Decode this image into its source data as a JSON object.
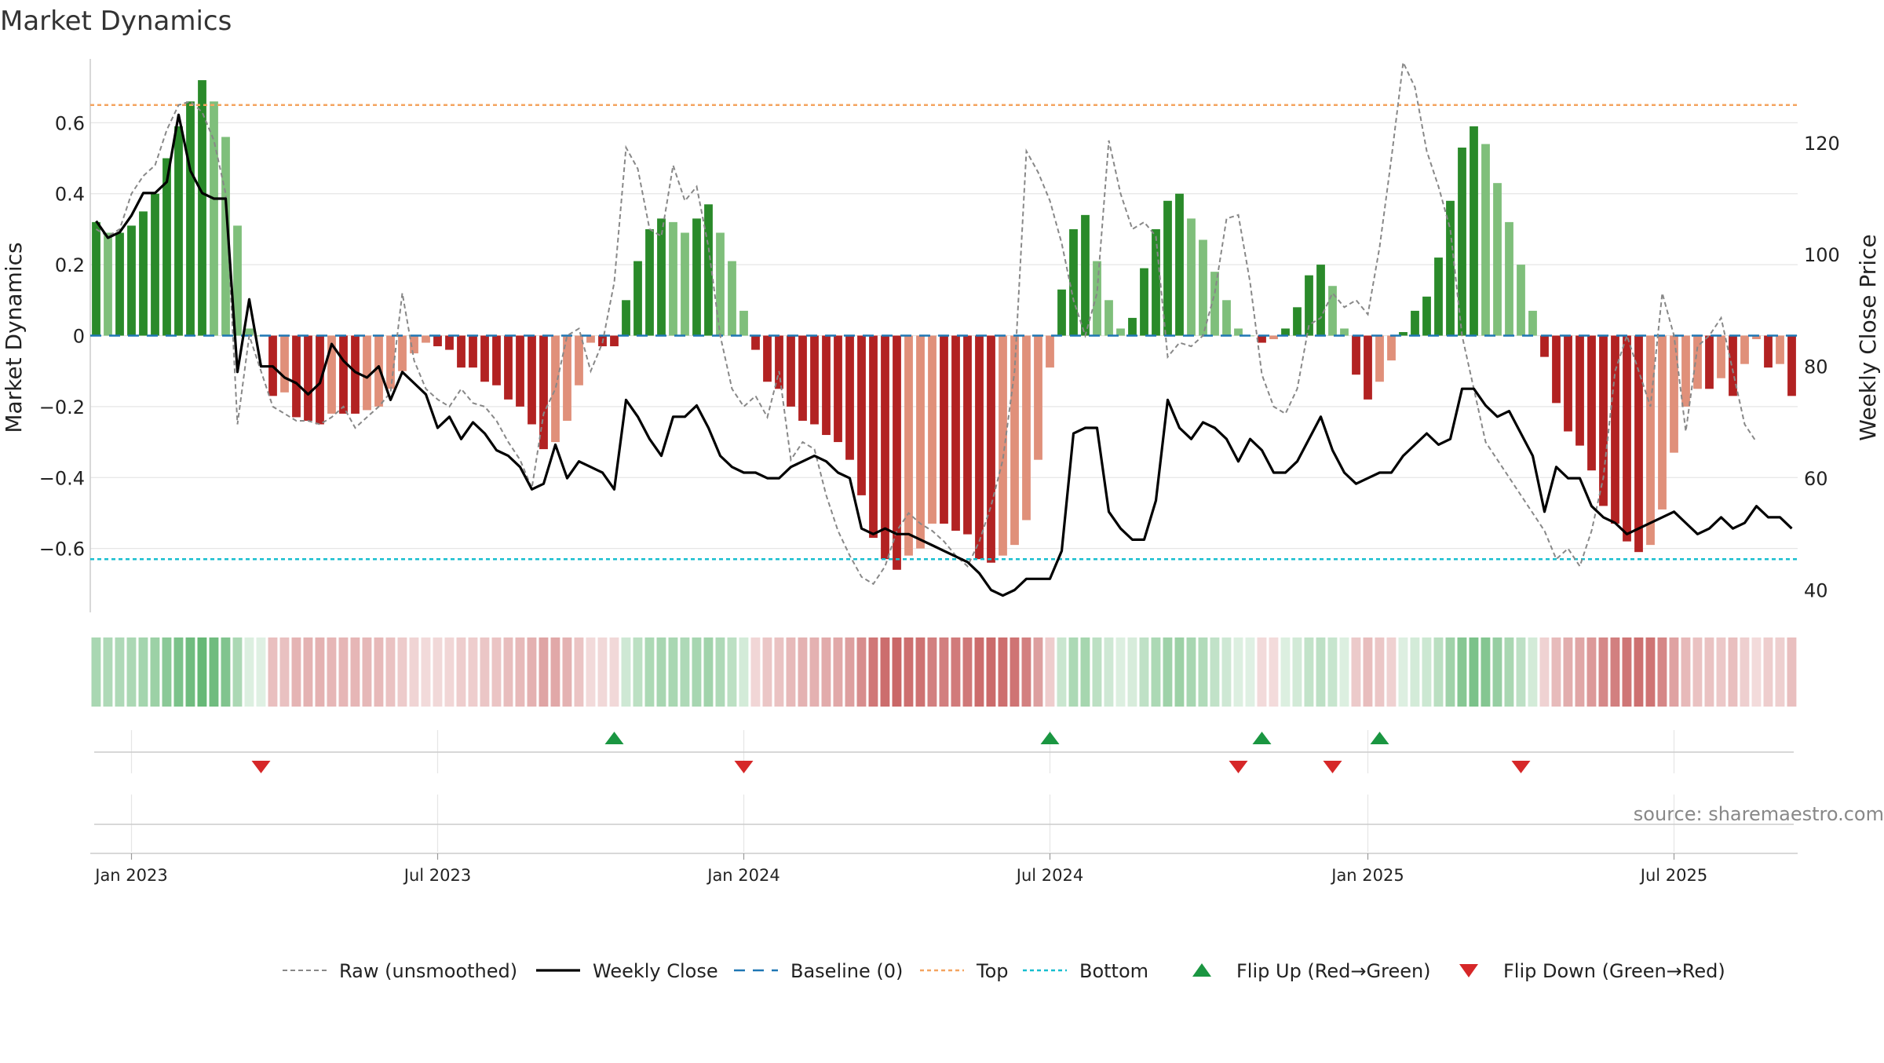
{
  "chart_data": {
    "type": "bar",
    "title": "Market Dynamics",
    "ylabel": "Market Dynamics",
    "y2label": "Weekly Close Price",
    "source": "source: sharemaestro.com",
    "ylim": [
      -0.78,
      0.78
    ],
    "y2lim": [
      36,
      135
    ],
    "yticks": [
      {
        "v": 0.6,
        "label": "0.6"
      },
      {
        "v": 0.4,
        "label": "0.4"
      },
      {
        "v": 0.2,
        "label": "0.2"
      },
      {
        "v": 0,
        "label": "0"
      },
      {
        "v": -0.2,
        "label": "−0.2"
      },
      {
        "v": -0.4,
        "label": "−0.4"
      },
      {
        "v": -0.6,
        "label": "−0.6"
      }
    ],
    "y2ticks": [
      {
        "v": 120,
        "label": "120"
      },
      {
        "v": 100,
        "label": "100"
      },
      {
        "v": 80,
        "label": "80"
      },
      {
        "v": 60,
        "label": "60"
      },
      {
        "v": 40,
        "label": "40"
      }
    ],
    "xticks": [
      {
        "week": 3,
        "label": "Jan 2023"
      },
      {
        "week": 29,
        "label": "Jul 2023"
      },
      {
        "week": 55,
        "label": "Jan 2024"
      },
      {
        "week": 81,
        "label": "Jul 2024"
      },
      {
        "week": 108,
        "label": "Jan 2025"
      },
      {
        "week": 134,
        "label": "Jul 2025"
      }
    ],
    "week_range": [
      0,
      144
    ],
    "top_level": 0.65,
    "bottom_level": -0.63,
    "bar_colors": {
      "strong_up": "#2a8a2a",
      "weak_up": "#7fbf7b",
      "strong_down": "#b22222",
      "weak_down": "#e0907a"
    },
    "line_colors": {
      "raw": "#888888",
      "close": "#000000",
      "baseline": "#1f77b4",
      "top": "#f4a460",
      "bottom": "#17becf",
      "flip_up": "#1a9641",
      "flip_down": "#d62728"
    },
    "series": [
      {
        "name": "Market Dynamics",
        "values": [
          0.32,
          0.29,
          0.29,
          0.31,
          0.35,
          0.4,
          0.5,
          0.59,
          0.66,
          0.72,
          0.66,
          0.56,
          0.31,
          0.02,
          0.0,
          -0.17,
          -0.16,
          -0.23,
          -0.24,
          -0.25,
          -0.22,
          -0.22,
          -0.22,
          -0.21,
          -0.2,
          -0.15,
          -0.1,
          -0.05,
          -0.02,
          -0.03,
          -0.04,
          -0.09,
          -0.09,
          -0.13,
          -0.14,
          -0.18,
          -0.2,
          -0.25,
          -0.32,
          -0.3,
          -0.24,
          -0.14,
          -0.02,
          -0.03,
          -0.03,
          0.1,
          0.21,
          0.3,
          0.33,
          0.32,
          0.29,
          0.33,
          0.37,
          0.29,
          0.21,
          0.07,
          -0.04,
          -0.13,
          -0.15,
          -0.2,
          -0.24,
          -0.25,
          -0.28,
          -0.3,
          -0.35,
          -0.45,
          -0.57,
          -0.63,
          -0.66,
          -0.62,
          -0.6,
          -0.53,
          -0.53,
          -0.55,
          -0.56,
          -0.63,
          -0.64,
          -0.62,
          -0.59,
          -0.52,
          -0.35,
          -0.09,
          0.13,
          0.3,
          0.34,
          0.21,
          0.1,
          0.02,
          0.05,
          0.19,
          0.3,
          0.38,
          0.4,
          0.33,
          0.27,
          0.18,
          0.1,
          0.02,
          0.0,
          -0.02,
          -0.01,
          0.02,
          0.08,
          0.17,
          0.2,
          0.14,
          0.02,
          -0.11,
          -0.18,
          -0.13,
          -0.07,
          0.01,
          0.07,
          0.11,
          0.22,
          0.38,
          0.53,
          0.59,
          0.54,
          0.43,
          0.32,
          0.2,
          0.07,
          -0.06,
          -0.19,
          -0.27,
          -0.31,
          -0.38,
          -0.48,
          -0.53,
          -0.58,
          -0.61,
          -0.59,
          -0.49,
          -0.33,
          -0.2,
          -0.15,
          -0.15,
          -0.12,
          -0.17,
          -0.08,
          -0.01,
          -0.09,
          -0.08,
          -0.17
        ]
      },
      {
        "name": "Raw (unsmoothed)",
        "values": [
          0.3,
          0.28,
          0.3,
          0.4,
          0.45,
          0.48,
          0.58,
          0.65,
          0.66,
          0.63,
          0.55,
          0.4,
          -0.25,
          0.0,
          -0.1,
          -0.2,
          -0.22,
          -0.24,
          -0.24,
          -0.25,
          -0.23,
          -0.2,
          -0.26,
          -0.23,
          -0.2,
          -0.16,
          0.12,
          -0.07,
          -0.15,
          -0.18,
          -0.2,
          -0.15,
          -0.19,
          -0.2,
          -0.24,
          -0.3,
          -0.35,
          -0.43,
          -0.22,
          -0.15,
          0.0,
          0.02,
          -0.1,
          -0.02,
          0.15,
          0.53,
          0.47,
          0.3,
          0.28,
          0.48,
          0.38,
          0.42,
          0.25,
          0.0,
          -0.15,
          -0.2,
          -0.17,
          -0.23,
          -0.1,
          -0.35,
          -0.3,
          -0.32,
          -0.45,
          -0.55,
          -0.62,
          -0.68,
          -0.7,
          -0.65,
          -0.55,
          -0.5,
          -0.53,
          -0.55,
          -0.58,
          -0.62,
          -0.65,
          -0.58,
          -0.48,
          -0.35,
          -0.1,
          0.52,
          0.46,
          0.38,
          0.26,
          0.1,
          0.0,
          0.12,
          0.55,
          0.4,
          0.3,
          0.32,
          0.28,
          -0.06,
          -0.02,
          -0.03,
          0.0,
          0.12,
          0.33,
          0.34,
          0.15,
          -0.11,
          -0.2,
          -0.22,
          -0.15,
          0.03,
          0.05,
          0.12,
          0.08,
          0.1,
          0.06,
          0.25,
          0.5,
          0.77,
          0.7,
          0.52,
          0.42,
          0.3,
          0.0,
          -0.15,
          -0.3,
          -0.35,
          -0.4,
          -0.45,
          -0.5,
          -0.55,
          -0.63,
          -0.6,
          -0.65,
          -0.55,
          -0.4,
          -0.1,
          0.0,
          -0.1,
          -0.2,
          0.12,
          0.0,
          -0.27,
          -0.03,
          0.0,
          0.05,
          -0.1,
          -0.25,
          -0.3
        ]
      },
      {
        "name": "Weekly Close",
        "values": [
          106,
          103,
          104,
          107,
          111,
          111,
          113,
          125,
          115,
          111,
          110,
          110,
          79,
          92,
          80,
          80,
          78,
          77,
          75,
          77,
          84,
          81,
          79,
          78,
          80,
          74,
          79,
          77,
          75,
          69,
          71,
          67,
          70,
          68,
          65,
          64,
          62,
          58,
          59,
          66,
          60,
          63,
          62,
          61,
          58,
          74,
          71,
          67,
          64,
          71,
          71,
          73,
          69,
          64,
          62,
          61,
          61,
          60,
          60,
          62,
          63,
          64,
          63,
          61,
          60,
          51,
          50,
          51,
          50,
          50,
          49,
          48,
          47,
          46,
          45,
          43,
          40,
          39,
          40,
          42,
          42,
          42,
          47,
          68,
          69,
          69,
          54,
          51,
          49,
          49,
          56,
          74,
          69,
          67,
          70,
          69,
          67,
          63,
          67,
          65,
          61,
          61,
          63,
          67,
          71,
          65,
          61,
          59,
          60,
          61,
          61,
          64,
          66,
          68,
          66,
          67,
          76,
          76,
          73,
          71,
          72,
          68,
          64,
          54,
          62,
          60,
          60,
          55,
          53,
          52,
          50,
          51,
          52,
          53,
          54,
          52,
          50,
          51,
          53,
          51,
          52,
          55,
          53,
          53,
          51
        ]
      }
    ],
    "flip_up_weeks": [
      44,
      81,
      99,
      109
    ],
    "flip_down_weeks": [
      14,
      55,
      97,
      105,
      121
    ],
    "legend": {
      "placement": "bottom",
      "items": [
        {
          "label": "Raw (unsmoothed)",
          "style": "dash-gray"
        },
        {
          "label": "Weekly Close",
          "style": "solid-black"
        },
        {
          "label": "Baseline (0)",
          "style": "dash-blue"
        },
        {
          "label": "Top",
          "style": "dot-orange"
        },
        {
          "label": "Bottom",
          "style": "dot-cyan"
        },
        {
          "label": "Flip Up (Red→Green)",
          "style": "tri-up-green"
        },
        {
          "label": "Flip Down (Green→Red)",
          "style": "tri-down-red"
        }
      ]
    }
  }
}
